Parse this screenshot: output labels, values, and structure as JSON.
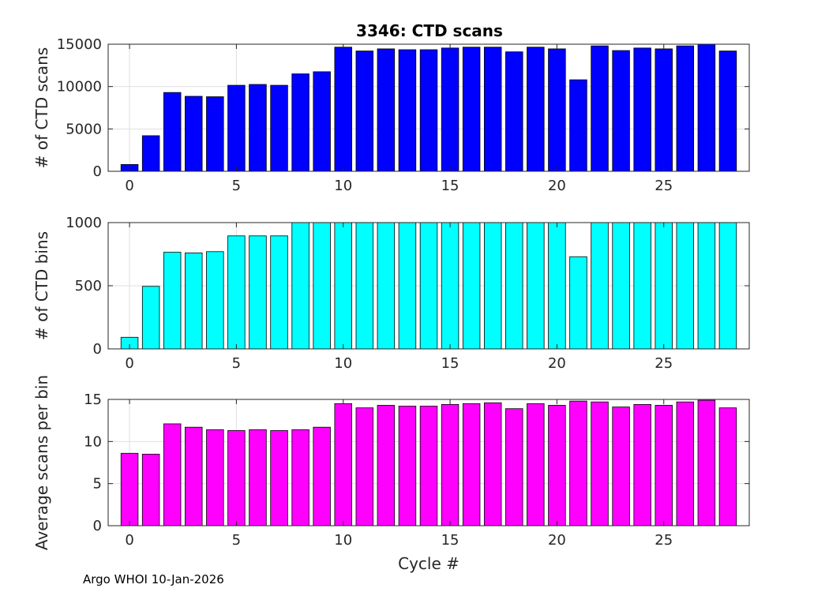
{
  "title": "3346: CTD scans",
  "footer": "Argo WHOI 10-Jan-2026",
  "chart_data": [
    {
      "type": "bar",
      "title": "3346: CTD scans",
      "xlabel": "",
      "ylabel": "# of CTD scans",
      "color": "#0000ff",
      "grid": true,
      "xlim": [
        -1,
        29
      ],
      "ylim": [
        0,
        15000
      ],
      "xticks": [
        0,
        5,
        10,
        15,
        20,
        25
      ],
      "yticks": [
        0,
        5000,
        10000,
        15000
      ],
      "x": [
        0,
        1,
        2,
        3,
        4,
        5,
        6,
        7,
        8,
        9,
        10,
        11,
        12,
        13,
        14,
        15,
        16,
        17,
        18,
        19,
        20,
        21,
        22,
        23,
        24,
        25,
        26,
        27,
        28
      ],
      "values": [
        800,
        4200,
        9300,
        8850,
        8800,
        10150,
        10250,
        10150,
        11500,
        11750,
        14650,
        14200,
        14450,
        14350,
        14350,
        14550,
        14650,
        14650,
        14100,
        14650,
        14450,
        10800,
        14800,
        14250,
        14550,
        14450,
        14800,
        15000,
        14200
      ]
    },
    {
      "type": "bar",
      "title": "",
      "xlabel": "",
      "ylabel": "# of CTD bins",
      "color": "#00ffff",
      "grid": true,
      "xlim": [
        -1,
        29
      ],
      "ylim": [
        0,
        1000
      ],
      "xticks": [
        0,
        5,
        10,
        15,
        20,
        25
      ],
      "yticks": [
        0,
        500,
        1000
      ],
      "x": [
        0,
        1,
        2,
        3,
        4,
        5,
        6,
        7,
        8,
        9,
        10,
        11,
        12,
        13,
        14,
        15,
        16,
        17,
        18,
        19,
        20,
        21,
        22,
        23,
        24,
        25,
        26,
        27,
        28
      ],
      "values": [
        92,
        495,
        765,
        760,
        770,
        895,
        895,
        895,
        1000,
        1000,
        1000,
        1000,
        1000,
        1000,
        1000,
        1000,
        1000,
        1000,
        1000,
        1000,
        1000,
        730,
        1000,
        1000,
        1000,
        1000,
        1000,
        1000,
        1000
      ]
    },
    {
      "type": "bar",
      "title": "",
      "xlabel": "Cycle #",
      "ylabel": "Average scans per bin",
      "color": "#ff00ff",
      "grid": true,
      "xlim": [
        -1,
        29
      ],
      "ylim": [
        0,
        15
      ],
      "xticks": [
        0,
        5,
        10,
        15,
        20,
        25
      ],
      "yticks": [
        0,
        5,
        10,
        15
      ],
      "x": [
        0,
        1,
        2,
        3,
        4,
        5,
        6,
        7,
        8,
        9,
        10,
        11,
        12,
        13,
        14,
        15,
        16,
        17,
        18,
        19,
        20,
        21,
        22,
        23,
        24,
        25,
        26,
        27,
        28
      ],
      "values": [
        8.6,
        8.5,
        12.1,
        11.7,
        11.4,
        11.3,
        11.4,
        11.3,
        11.4,
        11.7,
        14.5,
        14.0,
        14.3,
        14.2,
        14.2,
        14.4,
        14.5,
        14.6,
        13.9,
        14.5,
        14.3,
        14.8,
        14.7,
        14.1,
        14.4,
        14.3,
        14.7,
        14.9,
        14.0
      ]
    }
  ]
}
